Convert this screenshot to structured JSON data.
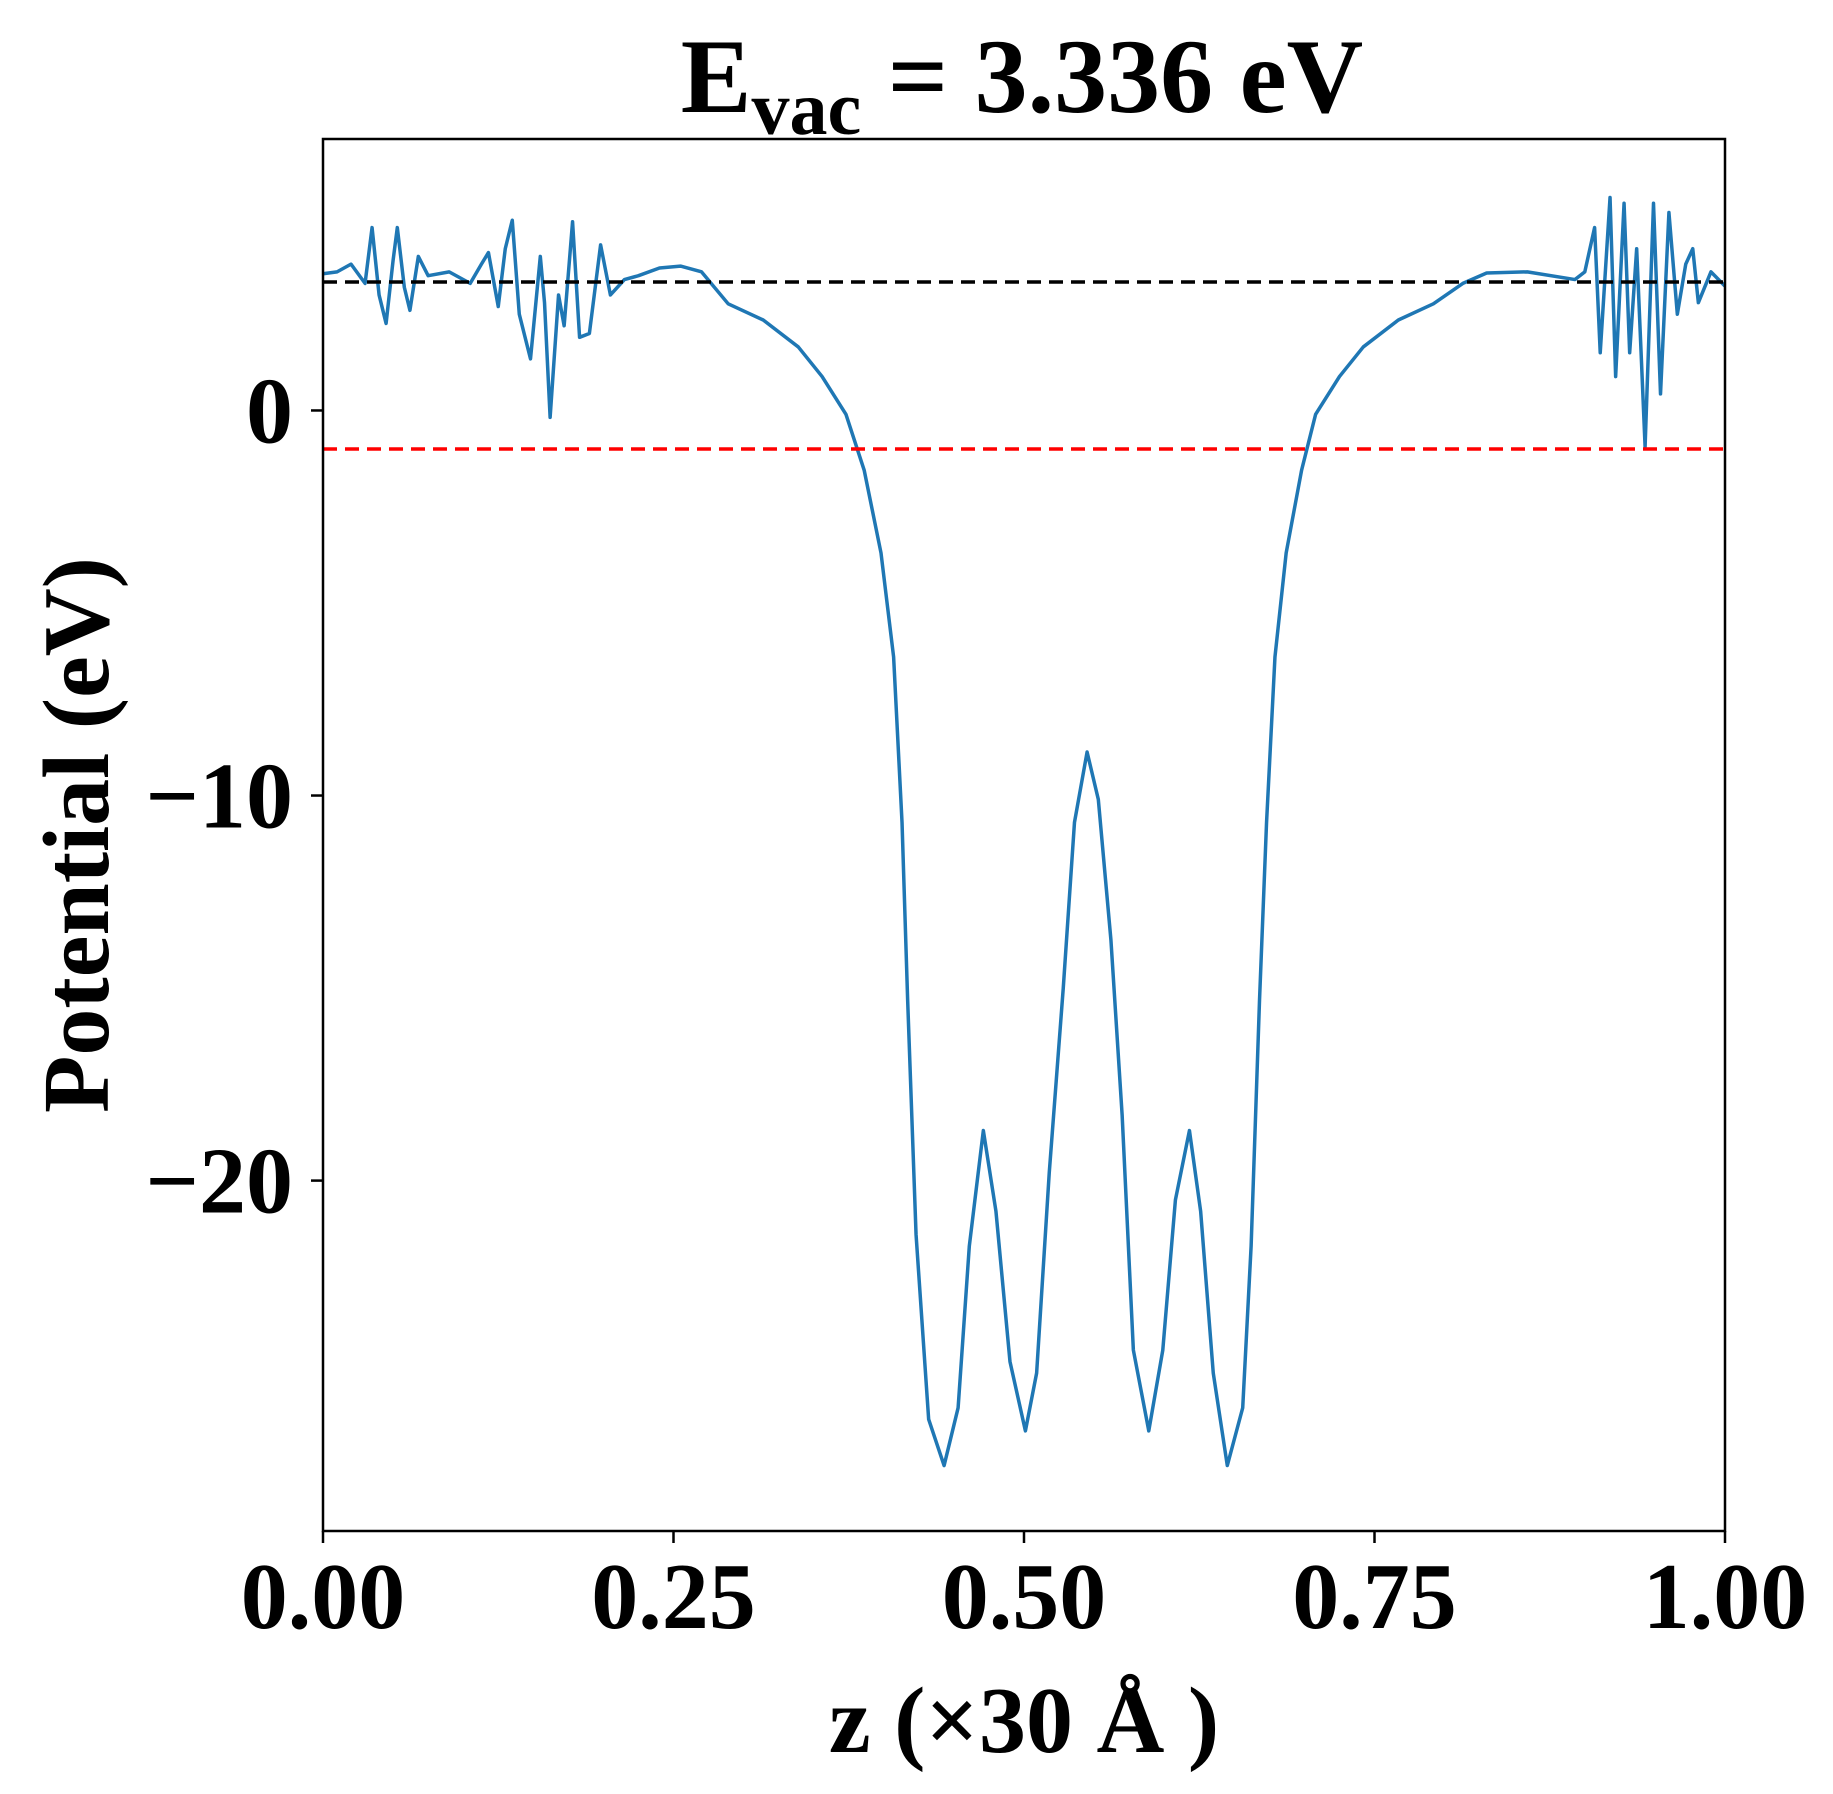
{
  "chart_data": {
    "type": "line",
    "title": {
      "main": "E",
      "sub": "vac",
      "rest": " = 3.336 eV"
    },
    "x_label": "z (×30 Å )",
    "y_label": "Potential (eV)",
    "xlim": [
      0,
      1
    ],
    "ylim": [
      -29.1,
      7.05
    ],
    "xticks": [
      {
        "value": 0,
        "label": "0.00"
      },
      {
        "value": 0.25,
        "label": "0.25"
      },
      {
        "value": 0.5,
        "label": "0.50"
      },
      {
        "value": 0.75,
        "label": "0.75"
      },
      {
        "value": 1,
        "label": "1.00"
      }
    ],
    "yticks": [
      {
        "value": -20,
        "label": "−20"
      },
      {
        "value": -10,
        "label": "−10"
      },
      0
    ],
    "grid": false,
    "hlines": [
      {
        "value": 3.336,
        "color": "#000000"
      },
      {
        "value": -1.0,
        "color": "#ff0000"
      }
    ],
    "x": [
      0.0,
      0.01,
      0.02,
      0.03,
      0.035,
      0.04,
      0.045,
      0.05,
      0.053,
      0.058,
      0.062,
      0.068,
      0.075,
      0.09,
      0.105,
      0.113,
      0.118,
      0.125,
      0.13,
      0.135,
      0.14,
      0.148,
      0.155,
      0.158,
      0.162,
      0.168,
      0.172,
      0.178,
      0.183,
      0.19,
      0.198,
      0.205,
      0.215,
      0.225,
      0.24,
      0.255,
      0.27,
      0.289,
      0.314,
      0.339,
      0.356,
      0.373,
      0.386,
      0.398,
      0.407,
      0.413,
      0.417,
      0.423,
      0.432,
      0.443,
      0.453,
      0.461,
      0.471,
      0.48,
      0.49,
      0.501,
      0.509,
      0.518,
      0.528,
      0.536,
      0.545,
      0.553,
      0.562,
      0.57,
      0.578,
      0.589,
      0.599,
      0.608,
      0.618,
      0.626,
      0.635,
      0.645,
      0.656,
      0.662,
      0.668,
      0.673,
      0.679,
      0.687,
      0.698,
      0.708,
      0.725,
      0.742,
      0.767,
      0.792,
      0.813,
      0.83,
      0.859,
      0.893,
      0.9,
      0.907,
      0.911,
      0.918,
      0.922,
      0.928,
      0.932,
      0.937,
      0.943,
      0.949,
      0.954,
      0.96,
      0.966,
      0.972,
      0.977,
      0.981,
      0.99,
      1.0
    ],
    "series": [
      {
        "name": "Potential",
        "color": "#1f77b4",
        "values": [
          3.55,
          3.6,
          3.8,
          3.3,
          4.75,
          3.0,
          2.26,
          3.9,
          4.75,
          3.2,
          2.6,
          4.0,
          3.5,
          3.6,
          3.3,
          3.8,
          4.1,
          2.7,
          4.2,
          4.94,
          2.5,
          1.34,
          4.0,
          2.8,
          -0.18,
          3.0,
          2.2,
          4.9,
          1.9,
          2.0,
          4.3,
          3.0,
          3.4,
          3.5,
          3.7,
          3.75,
          3.6,
          2.77,
          2.35,
          1.65,
          0.88,
          -0.1,
          -1.55,
          -3.7,
          -6.4,
          -10.7,
          -15.3,
          -21.4,
          -26.2,
          -27.4,
          -25.9,
          -21.7,
          -18.7,
          -20.8,
          -24.7,
          -26.5,
          -25.0,
          -19.8,
          -15.0,
          -10.7,
          -8.87,
          -10.1,
          -13.75,
          -18.3,
          -24.4,
          -26.5,
          -24.4,
          -20.5,
          -18.7,
          -20.8,
          -25.0,
          -27.4,
          -25.9,
          -21.7,
          -15.3,
          -10.7,
          -6.4,
          -3.7,
          -1.55,
          -0.1,
          0.88,
          1.65,
          2.35,
          2.77,
          3.3,
          3.57,
          3.6,
          3.4,
          3.6,
          4.75,
          1.5,
          5.53,
          0.88,
          5.38,
          1.5,
          4.2,
          -0.94,
          5.38,
          0.43,
          5.14,
          2.5,
          3.8,
          4.2,
          2.8,
          3.6,
          3.23
        ]
      }
    ]
  }
}
